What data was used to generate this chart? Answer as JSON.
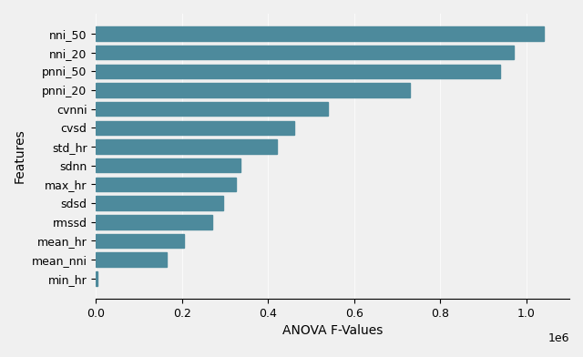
{
  "features": [
    "nni_50",
    "nni_20",
    "pnni_50",
    "pnni_20",
    "cvnni",
    "cvsd",
    "std_hr",
    "sdnn",
    "max_hr",
    "sdsd",
    "rmssd",
    "mean_hr",
    "mean_nni",
    "min_hr"
  ],
  "values": [
    1040000,
    970000,
    940000,
    730000,
    540000,
    460000,
    420000,
    335000,
    325000,
    295000,
    270000,
    205000,
    165000,
    4000
  ],
  "bar_color": "#4d8a9c",
  "xlabel": "ANOVA F-Values",
  "ylabel": "Features",
  "xlim": [
    0,
    1100000
  ],
  "background_color": "#f0f0f0",
  "figsize": [
    6.4,
    3.92
  ],
  "dpi": 100
}
